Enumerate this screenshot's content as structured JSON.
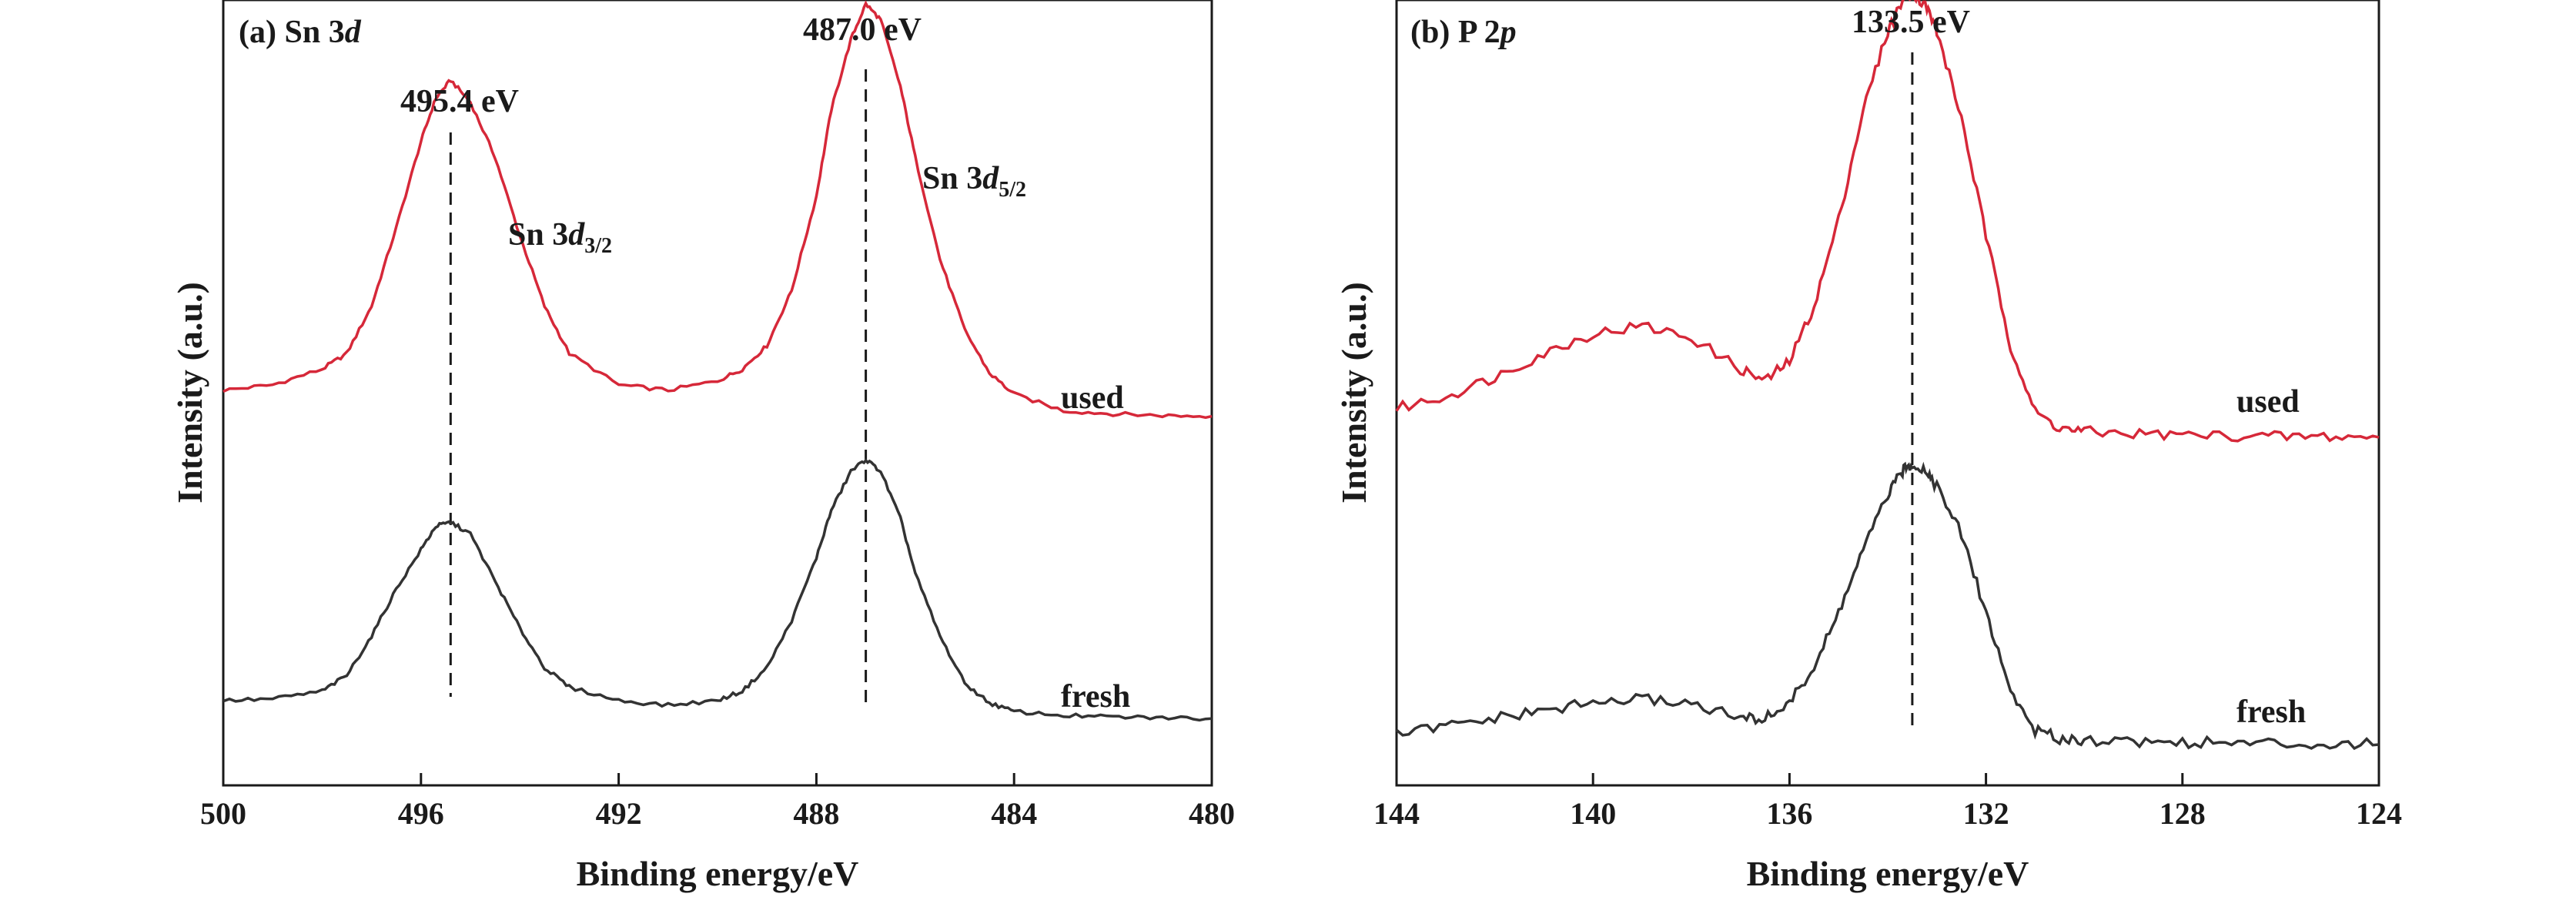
{
  "colors": {
    "used": "#d62839",
    "fresh": "#333333",
    "axis": "#1a1a1a"
  },
  "chart_data": [
    {
      "type": "line",
      "panel_label": {
        "prefix": "(a) Sn 3",
        "italic": "d"
      },
      "xlabel": "Binding energy/eV",
      "ylabel": "Intensity (a.u.)",
      "xlim": [
        500,
        480
      ],
      "ylim": [
        0,
        100
      ],
      "xticks": [
        500,
        496,
        492,
        488,
        484,
        480
      ],
      "series": [
        {
          "name": "used",
          "x": [
            500,
            499,
            498,
            497.5,
            497,
            496.5,
            496,
            495.7,
            495.4,
            495.0,
            494.5,
            494,
            493.5,
            493,
            492,
            491,
            490,
            489.5,
            489,
            488.5,
            488,
            487.7,
            487.3,
            487.0,
            486.7,
            486.3,
            486,
            485.5,
            485,
            484.5,
            484,
            483,
            482,
            481,
            480
          ],
          "y": [
            50.3,
            51,
            53,
            55,
            61,
            71,
            82,
            87.5,
            89.8,
            87,
            80,
            70,
            61,
            55,
            51,
            50.3,
            51.5,
            53,
            56,
            63,
            75,
            86,
            95,
            99.5,
            97.5,
            89,
            80,
            67,
            58,
            52.5,
            49.8,
            47.7,
            47.3,
            47.1,
            47.0
          ]
        },
        {
          "name": "fresh",
          "x": [
            500,
            499,
            498,
            497.5,
            497,
            496.5,
            496,
            495.7,
            495.4,
            495.0,
            494.5,
            494,
            493.5,
            493,
            492,
            491,
            490,
            489.5,
            489,
            488.5,
            488,
            487.7,
            487.3,
            487.0,
            486.7,
            486.3,
            486,
            485.5,
            485,
            484.5,
            484,
            483,
            482,
            481,
            480
          ],
          "y": [
            10.8,
            11,
            12,
            14,
            19,
            25,
            30,
            33,
            33.5,
            32,
            26,
            20,
            15,
            12.5,
            10.8,
            10.2,
            10.8,
            12,
            15,
            21,
            29,
            35,
            40,
            41.5,
            40,
            34,
            27,
            19,
            13,
            10.5,
            9.4,
            8.9,
            8.7,
            8.6,
            8.5
          ]
        }
      ],
      "annotations": {
        "peak1": "495.4 eV",
        "peak2": "487.0 eV",
        "label1_main": "Sn 3",
        "label1_italic": "d",
        "label1_sub": "3/2",
        "label2_main": "Sn 3",
        "label2_italic": "d",
        "label2_sub": "5/2"
      },
      "dashed_lines_x": [
        495.4,
        487.0
      ],
      "grid": false,
      "legend": "none"
    },
    {
      "type": "line",
      "panel_label": {
        "prefix": "(b) P 2",
        "italic": "p"
      },
      "xlabel": "Binding energy/eV",
      "ylabel": "Intensity (a.u.)",
      "xlim": [
        144,
        124
      ],
      "ylim": [
        0,
        100
      ],
      "xticks": [
        144,
        140,
        136,
        132,
        128,
        124
      ],
      "series": [
        {
          "name": "used",
          "x": [
            144,
            143,
            142,
            141,
            140,
            139,
            138,
            137,
            136.5,
            136,
            135.5,
            135,
            134.5,
            134,
            133.7,
            133.5,
            133.2,
            133,
            132.5,
            132,
            131.5,
            131,
            130.5,
            130,
            129,
            128,
            127,
            126,
            125,
            124
          ],
          "y": [
            48,
            49.5,
            52,
            55,
            57.5,
            58.5,
            57,
            53,
            51.5,
            54,
            61,
            72,
            86,
            96,
            100,
            101,
            99,
            96,
            85,
            70,
            56,
            47.5,
            45.5,
            45,
            44.8,
            44.6,
            44.5,
            44.4,
            44.4,
            44.3
          ]
        },
        {
          "name": "fresh",
          "x": [
            144,
            143,
            142,
            141,
            140,
            139,
            138,
            137,
            136.5,
            136,
            135.5,
            135,
            134.5,
            134,
            133.7,
            133.5,
            133.2,
            133,
            132.5,
            132,
            131.5,
            131,
            130.5,
            130,
            129,
            128,
            127,
            126,
            125,
            124
          ],
          "y": [
            6.5,
            7.5,
            8.5,
            9.5,
            10.5,
            11,
            10.5,
            8.5,
            8.5,
            10.5,
            15,
            22,
            30,
            37,
            40,
            41,
            40,
            38,
            32,
            22,
            12,
            7,
            6,
            5.8,
            5.6,
            5.5,
            5.4,
            5.3,
            5.3,
            5.2
          ]
        }
      ],
      "annotations": {
        "peak": "133.5 eV"
      },
      "dashed_lines_x": [
        133.5
      ],
      "grid": false,
      "legend": "none"
    }
  ]
}
